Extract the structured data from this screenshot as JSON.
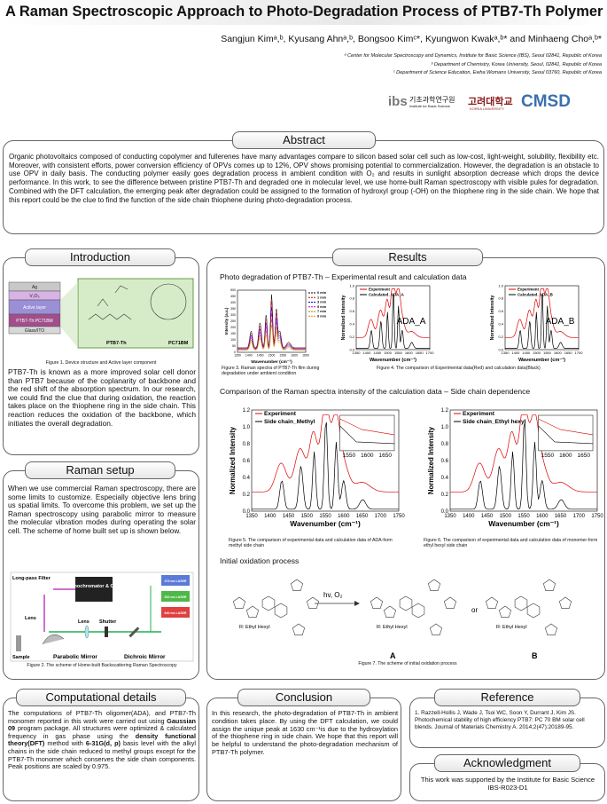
{
  "header": {
    "title": "A Raman Spectroscopic Approach to Photo-Degradation Process of PTB7-Th Polymer",
    "authors": "Sangjun Kimᵃ,ᵇ, Kyusang Ahnᵃ,ᵇ, Bongsoo Kimᶜ*, Kyungwon Kwakᵃ,ᵇ* and Minhaeng Choᵃ,ᵇ*",
    "affiliations": [
      "ᵃ Center for Molecular Spectroscopy and Dynamics, Institute for Basic Science (IBS),  Seoul 02841, Republic of Korea",
      "ᵇ Department of Chemistry, Korea University, Seoul, 02841, Republic of Korea",
      "ᶜ Department of Science Education, Ewha Womans University, Seoul 03760, Republic of Korea"
    ],
    "logos": [
      "ibs",
      "기초과학연구원",
      "Institute for Basic Science",
      "고려대학교",
      "KOREA UNIVERSITY",
      "CMSD"
    ]
  },
  "abstract": {
    "heading": "Abstract",
    "text": "Organic photovoltaics composed of conducting copolymer and fullerenes have many advantages compare to silicon based solar cell such as low-cost, light-weight, solubility, flexibility etc. Moreover, with consistent efforts, power conversion efficiency of OPVs comes up to 12%, OPV shows promising potential to commercialization. However, the degradation is an obstacle to use OPV in daily basis. The conducting polymer easily goes degradation process in ambient condition with O₂ and results in sunlight absorption decrease which drops the device performance. In this work, to see the difference between pristine PTB7-Th and degraded one in molecular level, we use home-built Raman spectroscopy with visible pules for degradation. Combined with the DFT calculation, the emerging peak after degradation could be assigned to the formation of hydroxyl group (-OH) on the thiophene ring in the side chain. We hope that this report could be the clue to find the function of the side chain thiophene during photo-degradation process."
  },
  "introduction": {
    "heading": "Introduction",
    "layers": [
      "Ag",
      "V₂O₅",
      "Active layer",
      "PTB7-Th:PC71BM",
      "Glass/ITO"
    ],
    "molecules": [
      "PTB7-Th",
      "PC71BM"
    ],
    "caption": "Figure 1. Device structure and Active layer component",
    "text": "PTB7-Th is known as a more improved solar cell donor than PTB7 because of the coplanarity of backbone and the red shift of the absorption spectrum.  In our research, we could find the clue that during oxidation, the reaction takes place on the thiophene ring in the side chain. This reaction reduces the oxidation of the backbone, which initiates the overall degradation."
  },
  "raman_setup": {
    "heading": "Raman setup",
    "text": "When we use commercial Raman spectroscopy, there are some limits to customize. Especially objective lens bring us spatial limits. To overcome this problem, we set up the Raman spectroscopy using parabolic mirror to measure the molecular vibration modes during operating the solar cell. The scheme of home built set up is shown below.",
    "labels": [
      "Long-pass Filter",
      "Monochromator & CCD",
      "473 nm LASER",
      "532 nm LASER",
      "640 nm LASER",
      "Lens",
      "Lens",
      "Shutter",
      "Sample",
      "Parabolic Mirror",
      "Dichroic Mirror"
    ],
    "caption": "Figure 2. The scheme of Home-built Backscattering Raman Spectroscopy"
  },
  "results": {
    "heading": "Results",
    "sub1": "Photo degradation of PTB7-Th –  Experimental result and calculation data",
    "fig3": {
      "y_label": "Intensity (a.u.)",
      "x_label": "Wavenumber (cm⁻¹)",
      "yticks": [
        "0",
        "50",
        "100",
        "150",
        "200",
        "250",
        "300",
        "350",
        "400",
        "450",
        "500"
      ],
      "xticks": [
        "1350",
        "1400",
        "1450",
        "1500",
        "1550",
        "1600",
        "1650"
      ],
      "legend": [
        "0 min",
        "1 min",
        "3 min",
        "5 min",
        "7 min",
        "9 min"
      ]
    },
    "fig3_caption": "Figure 3. Raman spectra of PTB7-Th film during degradation under ambient condition",
    "fig4a": {
      "y_label": "Normalized Intensity",
      "x_label": "Wavenumber (cm⁻¹)",
      "yticks": [
        "0.0",
        "0.2",
        "0.4",
        "0.6",
        "0.8",
        "1.0"
      ],
      "xticks": [
        "1350",
        "1400",
        "1450",
        "1500",
        "1550",
        "1600",
        "1650",
        "1700"
      ],
      "legend": [
        "Experiment",
        "Calculated_ADA_A"
      ],
      "label": "ADA_A"
    },
    "fig4b": {
      "y_label": "Normalized Intensity",
      "x_label": "Wavenumber (cm⁻¹)",
      "yticks": [
        "0.0",
        "0.2",
        "0.4",
        "0.6",
        "0.8",
        "1.0"
      ],
      "xticks": [
        "1350",
        "1400",
        "1450",
        "1500",
        "1550",
        "1600",
        "1650",
        "1700"
      ],
      "legend": [
        "Experiment",
        "Calculated_ADA_B"
      ],
      "label": "ADA_B"
    },
    "fig4_caption": "Figure 4. The comparison of Experimental data(Red) and calculation data(Black)",
    "sub2": "Comparison of the Raman spectra intensity of the calculation data – Side chain dependence",
    "fig5": {
      "y_label": "Normalized Intensity",
      "x_label": "Wavenumber (cm⁻¹)",
      "yticks": [
        "0.0",
        "0.2",
        "0.4",
        "0.6",
        "0.8",
        "1.0",
        "1.2"
      ],
      "xticks": [
        "1350",
        "1400",
        "1450",
        "1500",
        "1550",
        "1600",
        "1650",
        "1700",
        "1750"
      ],
      "legend": [
        "Experiment",
        "Side chain_Methyl"
      ],
      "inset_ticks": [
        "1550",
        "1600",
        "1650"
      ]
    },
    "fig6": {
      "y_label": "Normalized Intensity",
      "x_label": "Wavenumber (cm⁻¹)",
      "yticks": [
        "0.0",
        "0.2",
        "0.4",
        "0.6",
        "0.8",
        "1.0",
        "1.2"
      ],
      "xticks": [
        "1350",
        "1400",
        "1450",
        "1500",
        "1550",
        "1600",
        "1650",
        "1700",
        "1750"
      ],
      "legend": [
        "Experiment",
        "Side chain_Ethyl hexyl"
      ],
      "inset_ticks": [
        "1550",
        "1600",
        "1650"
      ]
    },
    "fig5_caption": "Figure 5. The comparison of experimental data and calculation data of ADA-form methyl side chain",
    "fig6_caption": "Figure 6. The comparison of experimental data and calculation data of monomer-form ethyl hexyl side chain",
    "sub3": "Initial oxidation process",
    "scheme_labels": [
      "R: Ethyl Hexyl",
      "R: Ethyl Hexyl",
      "R: Ethyl Hexyl",
      "hv, O₂",
      "or",
      "A",
      "B"
    ],
    "fig7_caption": "Figure 7. The scheme of initial oxidation process"
  },
  "computational": {
    "heading": "Computational details",
    "text_parts": [
      "The computations of PTB7-Th oligomer(ADA), and PTB7-Th monomer reported in this work were carried out using ",
      "Gaussian 09",
      " program package. All structures were optimized & calculated frequency in gas phase using the ",
      "density functional theory(DFT)",
      " method with ",
      "6-31G(d, p)",
      " basis level with the alkyl chains in the side chain reduced to methyl groups except for the PTB7-Th monomer which conserves the side chain components. Peak positions are scaled by 0.975."
    ]
  },
  "conclusion": {
    "heading": "Conclusion",
    "text": "In this research, the photo-degradation of PTB7-Th in ambient condition takes place. By using the DFT calculation, we could assign the unique peak at 1630 cm⁻¹is due to the hydroxylation of the thiophene ring in side chain. We hope that this report will be helpful to understand the photo-degradation mechanism of PTB7-Th polymer."
  },
  "reference": {
    "heading": "Reference",
    "text": "1. Razzell-Hollis J, Wade J, Tsoi WC, Soon Y, Durrant J, Kim JS. Photochemical stability of high efficiency PTB7: PC 70 BM solar cell blends. Journal of Materials Chemistry A. 2014;2(47):20189-95."
  },
  "acknowledgment": {
    "heading": "Acknowledgment",
    "text": "This work was supported by the Institute for Basic Science IBS-R023-D1"
  }
}
